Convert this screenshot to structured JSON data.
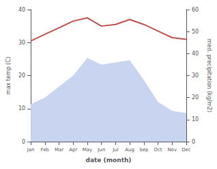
{
  "chart_data": {
    "type": "line",
    "categories": [
      "Jan",
      "Feb",
      "Mar",
      "Apr",
      "May",
      "Jun",
      "Jul",
      "Aug",
      "Sep",
      "Oct",
      "Nov",
      "Dec"
    ],
    "xlabel": "date (month)",
    "ylabel": "max temp (C)",
    "y2label": "med. precipitation (kg/m2)",
    "series": [
      {
        "type": "area",
        "axis": "y2",
        "color": "#c8d4f0",
        "values": [
          17,
          20,
          25,
          30,
          38,
          35,
          36,
          37,
          28,
          18,
          14,
          13
        ]
      },
      {
        "type": "line",
        "color": "#c0504d",
        "values": [
          30.5,
          32.5,
          34.5,
          36.5,
          37.5,
          35.0,
          35.5,
          37.0,
          35.5,
          33.5,
          31.5,
          31.0
        ]
      }
    ],
    "ylim": [
      0,
      40
    ],
    "yticks": [
      0,
      10,
      20,
      30,
      40
    ],
    "y2lim": [
      0,
      60
    ],
    "y2ticks": [
      0,
      10,
      20,
      30,
      40,
      50,
      60
    ],
    "grid": false
  }
}
